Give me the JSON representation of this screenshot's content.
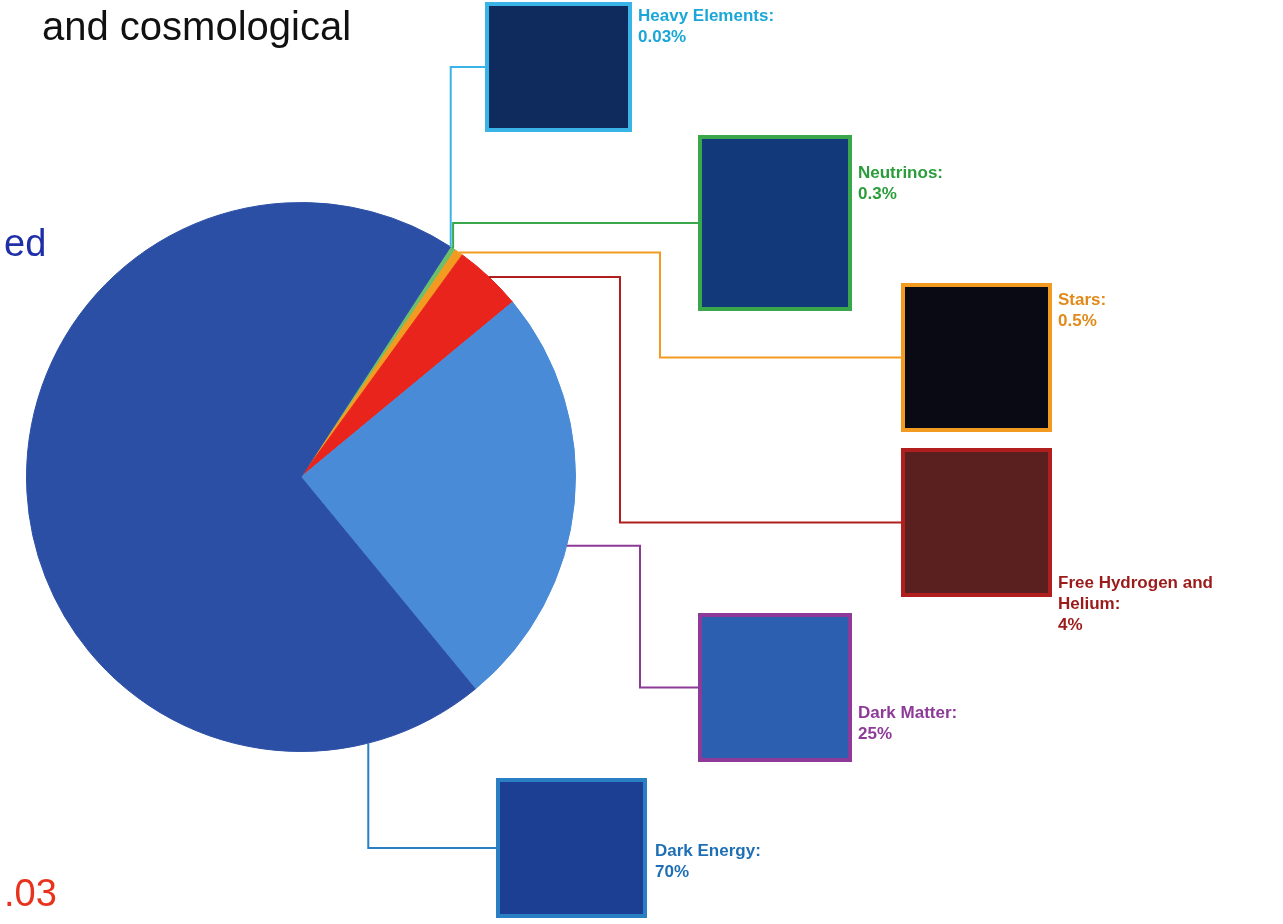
{
  "chart_data": {
    "type": "pie",
    "title": "and cosmological",
    "annotations": [
      "ed",
      ".03"
    ],
    "categories": [
      "Heavy Elements:",
      "Neutrinos:",
      "Stars:",
      "Free Hydrogen and Helium:",
      "Dark Matter:",
      "Dark Energy:"
    ],
    "values": [
      0.03,
      0.3,
      0.5,
      4,
      25,
      70
    ],
    "value_labels": [
      "0.03%",
      "0.3%",
      "0.5%",
      "4%",
      "25%",
      "70%"
    ],
    "colors": [
      "#39b4e6",
      "#6dbf6a",
      "#f39a21",
      "#e8241c",
      "#4a8bd8",
      "#2c4fa6"
    ],
    "data_labels": true
  }
}
